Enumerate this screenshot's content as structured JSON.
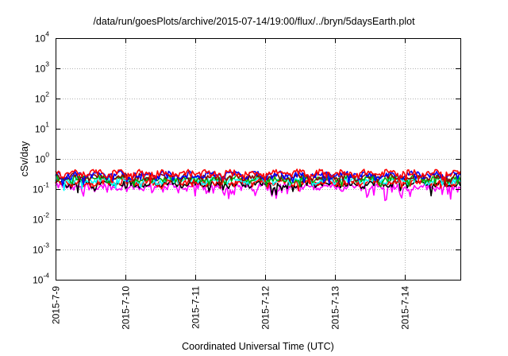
{
  "chart_data": {
    "type": "line",
    "title": "/data/run/goesPlots/archive/2015-07-14/19:00/flux/../bryn/5daysEarth.plot",
    "xlabel": "Coordinated Universal Time (UTC)",
    "ylabel": "cSv/day",
    "y_scale": "log",
    "ylim_exponents": [
      -4,
      4
    ],
    "y_tick_labels": [
      {
        "base": "10",
        "exp": "4"
      },
      {
        "base": "10",
        "exp": "3"
      },
      {
        "base": "10",
        "exp": "2"
      },
      {
        "base": "10",
        "exp": "1"
      },
      {
        "base": "10",
        "exp": "0"
      },
      {
        "base": "10",
        "exp": "-1"
      },
      {
        "base": "10",
        "exp": "-2"
      },
      {
        "base": "10",
        "exp": "-3"
      },
      {
        "base": "10",
        "exp": "-4"
      }
    ],
    "x_tick_labels": [
      "2015-7-9",
      "2015-7-10",
      "2015-7-11",
      "2015-7-12",
      "2015-7-13",
      "2015-7-14"
    ],
    "xlim_days": [
      0,
      5.8
    ],
    "grid": true,
    "series": [
      {
        "color": "#ff00ff",
        "approx_value": 0.12
      },
      {
        "color": "#000000",
        "approx_value": 0.15
      },
      {
        "color": "#ff0000",
        "approx_value": 0.17
      },
      {
        "color": "#00ffff",
        "approx_value": 0.2
      },
      {
        "color": "#00aa00",
        "approx_value": 0.22
      },
      {
        "color": "#8b0000",
        "approx_value": 0.26
      },
      {
        "color": "#0000ff",
        "approx_value": 0.3
      },
      {
        "color": "#ff0000",
        "approx_value": 0.34
      }
    ]
  }
}
